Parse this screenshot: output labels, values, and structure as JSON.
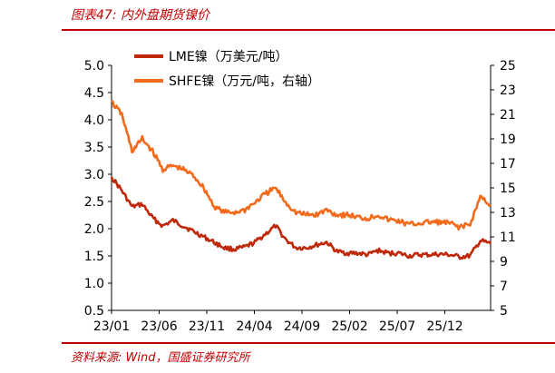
{
  "figure": {
    "title": "图表47:  内外盘期货镍价",
    "source": "资料来源:  Wind，国盛证券研究所"
  },
  "chart_data": {
    "type": "line",
    "x_tick_labels": [
      "23/01",
      "23/06",
      "23/11",
      "24/04",
      "24/09",
      "25/02",
      "25/07",
      "25/12"
    ],
    "x_range": [
      "2023-01",
      "2026-02"
    ],
    "left_axis": {
      "ylim": [
        0.5,
        5.0
      ],
      "ticks": [
        "0.5",
        "1.0",
        "1.5",
        "2.0",
        "2.5",
        "3.0",
        "3.5",
        "4.0",
        "4.5",
        "5.0"
      ]
    },
    "right_axis": {
      "ylim": [
        5,
        25
      ],
      "ticks": [
        "5",
        "7",
        "9",
        "11",
        "13",
        "15",
        "17",
        "19",
        "21",
        "23",
        "25"
      ]
    },
    "grid": false,
    "legend_position": "top-left",
    "series": [
      {
        "name": "LME镍（万美元/吨）",
        "axis": "left",
        "color": "#c0280a",
        "points": [
          [
            "2023-01",
            2.95
          ],
          [
            "2023-02",
            2.7
          ],
          [
            "2023-03",
            2.4
          ],
          [
            "2023-04",
            2.45
          ],
          [
            "2023-05",
            2.2
          ],
          [
            "2023-06",
            2.05
          ],
          [
            "2023-07",
            2.15
          ],
          [
            "2023-08",
            2.05
          ],
          [
            "2023-09",
            1.95
          ],
          [
            "2023-10",
            1.85
          ],
          [
            "2023-11",
            1.75
          ],
          [
            "2023-12",
            1.65
          ],
          [
            "2024-01",
            1.62
          ],
          [
            "2024-02",
            1.66
          ],
          [
            "2024-03",
            1.75
          ],
          [
            "2024-04",
            1.9
          ],
          [
            "2024-05",
            2.05
          ],
          [
            "2024-06",
            1.8
          ],
          [
            "2024-07",
            1.65
          ],
          [
            "2024-08",
            1.65
          ],
          [
            "2024-09",
            1.7
          ],
          [
            "2024-10",
            1.75
          ],
          [
            "2024-11",
            1.58
          ],
          [
            "2024-12",
            1.55
          ],
          [
            "2025-01",
            1.55
          ],
          [
            "2025-02",
            1.52
          ],
          [
            "2025-03",
            1.6
          ],
          [
            "2025-04",
            1.55
          ],
          [
            "2025-05",
            1.55
          ],
          [
            "2025-06",
            1.5
          ],
          [
            "2025-07",
            1.52
          ],
          [
            "2025-08",
            1.52
          ],
          [
            "2025-09",
            1.53
          ],
          [
            "2025-10",
            1.52
          ],
          [
            "2025-11",
            1.48
          ],
          [
            "2025-12",
            1.5
          ],
          [
            "2026-01",
            1.78
          ],
          [
            "2026-02",
            1.72
          ]
        ]
      },
      {
        "name": "SHFE镍（万元/吨，右轴）",
        "axis": "right",
        "color": "#f26b1d",
        "points": [
          [
            "2023-01",
            22.0
          ],
          [
            "2023-02",
            21.0
          ],
          [
            "2023-03",
            18.0
          ],
          [
            "2023-04",
            19.0
          ],
          [
            "2023-05",
            18.0
          ],
          [
            "2023-06",
            16.5
          ],
          [
            "2023-07",
            16.8
          ],
          [
            "2023-08",
            16.5
          ],
          [
            "2023-09",
            16.0
          ],
          [
            "2023-10",
            15.0
          ],
          [
            "2023-11",
            13.5
          ],
          [
            "2023-12",
            13.0
          ],
          [
            "2024-01",
            13.0
          ],
          [
            "2024-02",
            13.2
          ],
          [
            "2024-03",
            13.8
          ],
          [
            "2024-04",
            14.5
          ],
          [
            "2024-05",
            15.0
          ],
          [
            "2024-06",
            13.8
          ],
          [
            "2024-07",
            13.0
          ],
          [
            "2024-08",
            12.8
          ],
          [
            "2024-09",
            12.8
          ],
          [
            "2024-10",
            13.2
          ],
          [
            "2024-11",
            12.8
          ],
          [
            "2024-12",
            12.8
          ],
          [
            "2025-01",
            12.6
          ],
          [
            "2025-02",
            12.5
          ],
          [
            "2025-03",
            12.8
          ],
          [
            "2025-04",
            12.4
          ],
          [
            "2025-05",
            12.3
          ],
          [
            "2025-06",
            12.0
          ],
          [
            "2025-07",
            12.1
          ],
          [
            "2025-08",
            12.2
          ],
          [
            "2025-09",
            12.2
          ],
          [
            "2025-10",
            12.1
          ],
          [
            "2025-11",
            11.8
          ],
          [
            "2025-12",
            12.0
          ],
          [
            "2026-01",
            14.3
          ],
          [
            "2026-02",
            13.6
          ]
        ]
      }
    ]
  }
}
